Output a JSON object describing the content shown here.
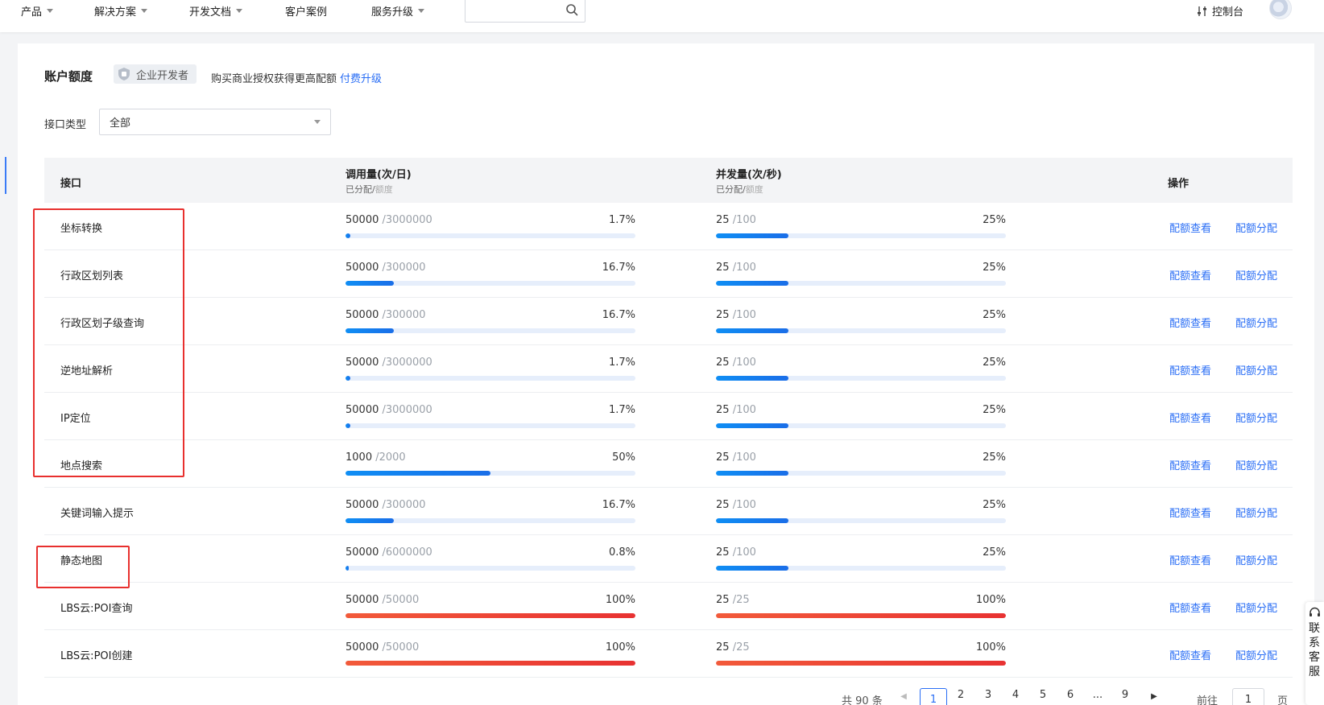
{
  "nav": {
    "items": [
      {
        "label": "产品",
        "dropdown": true
      },
      {
        "label": "解决方案",
        "dropdown": true
      },
      {
        "label": "开发文档",
        "dropdown": true
      },
      {
        "label": "客户案例",
        "dropdown": false
      },
      {
        "label": "服务升级",
        "dropdown": true
      }
    ],
    "console_label": "控制台"
  },
  "quota": {
    "title": "账户额度",
    "badge": "企业开发者",
    "tip": "购买商业授权获得更高配额",
    "upgrade_link": "付费升级"
  },
  "filter": {
    "label": "接口类型",
    "selected": "全部"
  },
  "table": {
    "headers": {
      "api": "接口",
      "calls": "调用量(次/日)",
      "calls_sub_a": "已分配/",
      "calls_sub_b": "额度",
      "concurrency": "并发量(次/秒)",
      "conc_sub_a": "已分配/",
      "conc_sub_b": "额度",
      "action": "操作"
    },
    "actions": {
      "view": "配额查看",
      "assign": "配额分配"
    },
    "rows": [
      {
        "name": "坐标转换",
        "calls_used": "50000",
        "calls_quota": "/3000000",
        "calls_pct": "1.7%",
        "calls_fill": 0.017,
        "conc_used": "25",
        "conc_quota": "/100",
        "conc_pct": "25%",
        "conc_fill": 0.25
      },
      {
        "name": "行政区划列表",
        "calls_used": "50000",
        "calls_quota": "/300000",
        "calls_pct": "16.7%",
        "calls_fill": 0.167,
        "conc_used": "25",
        "conc_quota": "/100",
        "conc_pct": "25%",
        "conc_fill": 0.25
      },
      {
        "name": "行政区划子级查询",
        "calls_used": "50000",
        "calls_quota": "/300000",
        "calls_pct": "16.7%",
        "calls_fill": 0.167,
        "conc_used": "25",
        "conc_quota": "/100",
        "conc_pct": "25%",
        "conc_fill": 0.25
      },
      {
        "name": "逆地址解析",
        "calls_used": "50000",
        "calls_quota": "/3000000",
        "calls_pct": "1.7%",
        "calls_fill": 0.017,
        "conc_used": "25",
        "conc_quota": "/100",
        "conc_pct": "25%",
        "conc_fill": 0.25
      },
      {
        "name": "IP定位",
        "calls_used": "50000",
        "calls_quota": "/3000000",
        "calls_pct": "1.7%",
        "calls_fill": 0.017,
        "conc_used": "25",
        "conc_quota": "/100",
        "conc_pct": "25%",
        "conc_fill": 0.25
      },
      {
        "name": "地点搜索",
        "calls_used": "1000",
        "calls_quota": "/2000",
        "calls_pct": "50%",
        "calls_fill": 0.5,
        "conc_used": "25",
        "conc_quota": "/100",
        "conc_pct": "25%",
        "conc_fill": 0.25
      },
      {
        "name": "关键词输入提示",
        "calls_used": "50000",
        "calls_quota": "/300000",
        "calls_pct": "16.7%",
        "calls_fill": 0.167,
        "conc_used": "25",
        "conc_quota": "/100",
        "conc_pct": "25%",
        "conc_fill": 0.25
      },
      {
        "name": "静态地图",
        "calls_used": "50000",
        "calls_quota": "/6000000",
        "calls_pct": "0.8%",
        "calls_fill": 0.008,
        "conc_used": "25",
        "conc_quota": "/100",
        "conc_pct": "25%",
        "conc_fill": 0.25
      },
      {
        "name": "LBS云:POI查询",
        "calls_used": "50000",
        "calls_quota": "/50000",
        "calls_pct": "100%",
        "calls_fill": 1.0,
        "conc_used": "25",
        "conc_quota": "/25",
        "conc_pct": "100%",
        "conc_fill": 1.0
      },
      {
        "name": "LBS云:POI创建",
        "calls_used": "50000",
        "calls_quota": "/50000",
        "calls_pct": "100%",
        "calls_fill": 1.0,
        "conc_used": "25",
        "conc_quota": "/25",
        "conc_pct": "100%",
        "conc_fill": 1.0
      }
    ]
  },
  "pagination": {
    "total": "共 90 条",
    "pages": [
      "1",
      "2",
      "3",
      "4",
      "5",
      "6",
      "...",
      "9"
    ],
    "active": "1",
    "goto_label": "前往",
    "goto_value": "1",
    "page_suffix": "页"
  },
  "service_widget": {
    "label": "联系客服"
  },
  "colors": {
    "accent": "#2a6ef5",
    "progress_blue": "#1a6ee8",
    "progress_full": "#e83232",
    "annotation": "#e8302e"
  }
}
